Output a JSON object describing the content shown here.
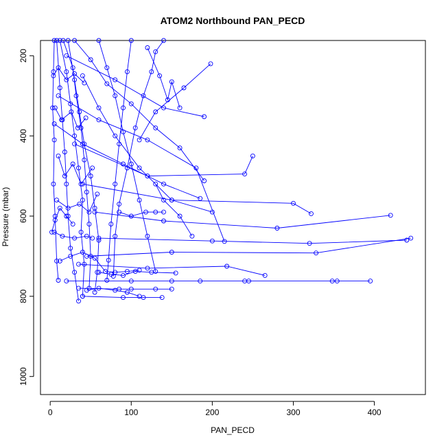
{
  "chart_data": {
    "type": "line",
    "title": "ATOM2 Northbound PAN_PECD",
    "xlabel": "PAN_PECD",
    "ylabel": "Pressure (mbar)",
    "xlim": [
      -12,
      463
    ],
    "ylim": [
      1045,
      162
    ],
    "y_reversed": true,
    "x_ticks": [
      0,
      100,
      200,
      300,
      400
    ],
    "y_ticks": [
      200,
      400,
      600,
      800,
      1000
    ],
    "grid": false,
    "color": "#0000ff",
    "series": [
      {
        "values": [
          [
            5,
            162
          ],
          [
            4,
            240
          ],
          [
            3,
            330
          ],
          [
            5,
            410
          ],
          [
            4,
            520
          ],
          [
            6,
            600
          ],
          [
            8,
            712
          ],
          [
            10,
            760
          ]
        ]
      },
      {
        "values": [
          [
            8,
            162
          ],
          [
            12,
            280
          ],
          [
            15,
            360
          ],
          [
            18,
            440
          ],
          [
            20,
            520
          ],
          [
            22,
            600
          ],
          [
            25,
            680
          ],
          [
            30,
            740
          ],
          [
            35,
            812
          ]
        ]
      },
      {
        "values": [
          [
            12,
            162
          ],
          [
            20,
            240
          ],
          [
            25,
            320
          ],
          [
            30,
            400
          ],
          [
            35,
            480
          ],
          [
            40,
            560
          ],
          [
            38,
            640
          ],
          [
            42,
            720
          ],
          [
            40,
            800
          ]
        ]
      },
      {
        "values": [
          [
            16,
            162
          ],
          [
            28,
            230
          ],
          [
            32,
            300
          ],
          [
            38,
            380
          ],
          [
            42,
            460
          ],
          [
            45,
            540
          ],
          [
            48,
            620
          ],
          [
            50,
            700
          ],
          [
            48,
            780
          ]
        ]
      },
      {
        "values": [
          [
            22,
            162
          ],
          [
            30,
            260
          ],
          [
            36,
            340
          ],
          [
            42,
            420
          ],
          [
            50,
            500
          ],
          [
            55,
            580
          ],
          [
            60,
            660
          ],
          [
            58,
            740
          ],
          [
            55,
            790
          ]
        ]
      },
      {
        "values": [
          [
            60,
            162
          ],
          [
            70,
            230
          ],
          [
            80,
            300
          ],
          [
            90,
            390
          ],
          [
            100,
            470
          ],
          [
            110,
            560
          ],
          [
            120,
            650
          ],
          [
            130,
            738
          ]
        ]
      },
      {
        "values": [
          [
            100,
            162
          ],
          [
            95,
            240
          ],
          [
            90,
            330
          ],
          [
            85,
            420
          ],
          [
            80,
            520
          ],
          [
            75,
            620
          ],
          [
            72,
            710
          ],
          [
            70,
            760
          ]
        ]
      },
      {
        "values": [
          [
            140,
            162
          ],
          [
            130,
            190
          ],
          [
            125,
            240
          ],
          [
            115,
            300
          ],
          [
            105,
            380
          ],
          [
            95,
            480
          ],
          [
            85,
            570
          ],
          [
            80,
            650
          ],
          [
            78,
            750
          ]
        ]
      },
      {
        "values": [
          [
            30,
            162
          ],
          [
            50,
            210
          ],
          [
            70,
            270
          ],
          [
            100,
            320
          ],
          [
            130,
            380
          ],
          [
            160,
            430
          ],
          [
            190,
            512
          ]
        ]
      },
      {
        "values": [
          [
            40,
            250
          ],
          [
            60,
            330
          ],
          [
            80,
            400
          ],
          [
            110,
            480
          ],
          [
            150,
            560
          ],
          [
            200,
            590
          ]
        ]
      },
      {
        "values": [
          [
            5,
            370
          ],
          [
            40,
            420
          ],
          [
            90,
            470
          ],
          [
            140,
            520
          ],
          [
            185,
            556
          ]
        ]
      },
      {
        "values": [
          [
            10,
            300
          ],
          [
            60,
            360
          ],
          [
            120,
            410
          ],
          [
            180,
            480
          ],
          [
            215,
            663
          ]
        ]
      },
      {
        "values": [
          [
            20,
            200
          ],
          [
            80,
            260
          ],
          [
            140,
            330
          ],
          [
            190,
            352
          ]
        ]
      },
      {
        "values": [
          [
            30,
            420
          ],
          [
            120,
            500
          ],
          [
            240,
            495
          ],
          [
            250,
            450
          ]
        ]
      },
      {
        "values": [
          [
            40,
            520
          ],
          [
            150,
            560
          ],
          [
            300,
            568
          ],
          [
            322,
            594
          ]
        ]
      },
      {
        "values": [
          [
            55,
            590
          ],
          [
            140,
            612
          ],
          [
            280,
            630
          ],
          [
            420,
            598
          ]
        ]
      },
      {
        "values": [
          [
            60,
            655
          ],
          [
            200,
            662
          ],
          [
            320,
            668
          ],
          [
            440,
            660
          ]
        ]
      },
      {
        "values": [
          [
            45,
            700
          ],
          [
            150,
            690
          ],
          [
            328,
            692
          ],
          [
            445,
            655
          ]
        ]
      },
      {
        "values": [
          [
            35,
            720
          ],
          [
            120,
            730
          ],
          [
            218,
            725
          ],
          [
            265,
            748
          ]
        ]
      },
      {
        "values": [
          [
            20,
            762
          ],
          [
            100,
            762
          ],
          [
            150,
            762
          ],
          [
            185,
            762
          ],
          [
            240,
            762
          ],
          [
            245,
            762
          ],
          [
            348,
            762
          ],
          [
            354,
            762
          ],
          [
            395,
            762
          ]
        ]
      },
      {
        "values": [
          [
            35,
            780
          ],
          [
            85,
            782
          ],
          [
            100,
            782
          ],
          [
            130,
            782
          ],
          [
            150,
            782
          ]
        ]
      },
      {
        "values": [
          [
            40,
            800
          ],
          [
            90,
            803
          ],
          [
            115,
            803
          ],
          [
            138,
            803
          ]
        ]
      },
      {
        "values": [
          [
            12,
            712
          ],
          [
            25,
            700
          ],
          [
            40,
            690
          ],
          [
            55,
            705
          ],
          [
            68,
            738
          ],
          [
            80,
            740
          ],
          [
            95,
            738
          ],
          [
            110,
            735
          ]
        ]
      },
      {
        "values": [
          [
            5,
            640
          ],
          [
            15,
            650
          ],
          [
            30,
            655
          ],
          [
            45,
            650
          ],
          [
            52,
            655
          ]
        ]
      },
      {
        "values": [
          [
            8,
            560
          ],
          [
            22,
            580
          ],
          [
            36,
            570
          ],
          [
            48,
            590
          ],
          [
            58,
            545
          ]
        ]
      },
      {
        "values": [
          [
            10,
            450
          ],
          [
            18,
            500
          ],
          [
            28,
            470
          ],
          [
            38,
            520
          ],
          [
            52,
            480
          ]
        ]
      },
      {
        "values": [
          [
            6,
            330
          ],
          [
            14,
            360
          ],
          [
            26,
            340
          ],
          [
            34,
            380
          ],
          [
            44,
            355
          ]
        ]
      },
      {
        "values": [
          [
            4,
            250
          ],
          [
            10,
            230
          ],
          [
            20,
            260
          ],
          [
            30,
            245
          ],
          [
            42,
            268
          ]
        ]
      },
      {
        "values": [
          [
            2,
            640
          ],
          [
            6,
            610
          ],
          [
            12,
            580
          ],
          [
            20,
            600
          ],
          [
            28,
            620
          ]
        ]
      },
      {
        "values": [
          [
            120,
            180
          ],
          [
            135,
            250
          ],
          [
            145,
            310
          ],
          [
            150,
            265
          ],
          [
            160,
            330
          ]
        ]
      },
      {
        "values": [
          [
            198,
            220
          ],
          [
            165,
            280
          ],
          [
            130,
            340
          ],
          [
            110,
            410
          ]
        ]
      },
      {
        "values": [
          [
            175,
            650
          ],
          [
            160,
            600
          ],
          [
            140,
            560
          ],
          [
            130,
            520
          ]
        ]
      },
      {
        "values": [
          [
            85,
            590
          ],
          [
            100,
            600
          ],
          [
            118,
            590
          ],
          [
            130,
            590
          ],
          [
            140,
            590
          ]
        ]
      },
      {
        "values": [
          [
            60,
            740
          ],
          [
            75,
            745
          ],
          [
            90,
            748
          ],
          [
            105,
            738
          ],
          [
            125,
            740
          ],
          [
            155,
            742
          ]
        ]
      },
      {
        "values": [
          [
            45,
            785
          ],
          [
            60,
            780
          ],
          [
            80,
            785
          ],
          [
            95,
            790
          ],
          [
            110,
            800
          ]
        ]
      }
    ]
  }
}
